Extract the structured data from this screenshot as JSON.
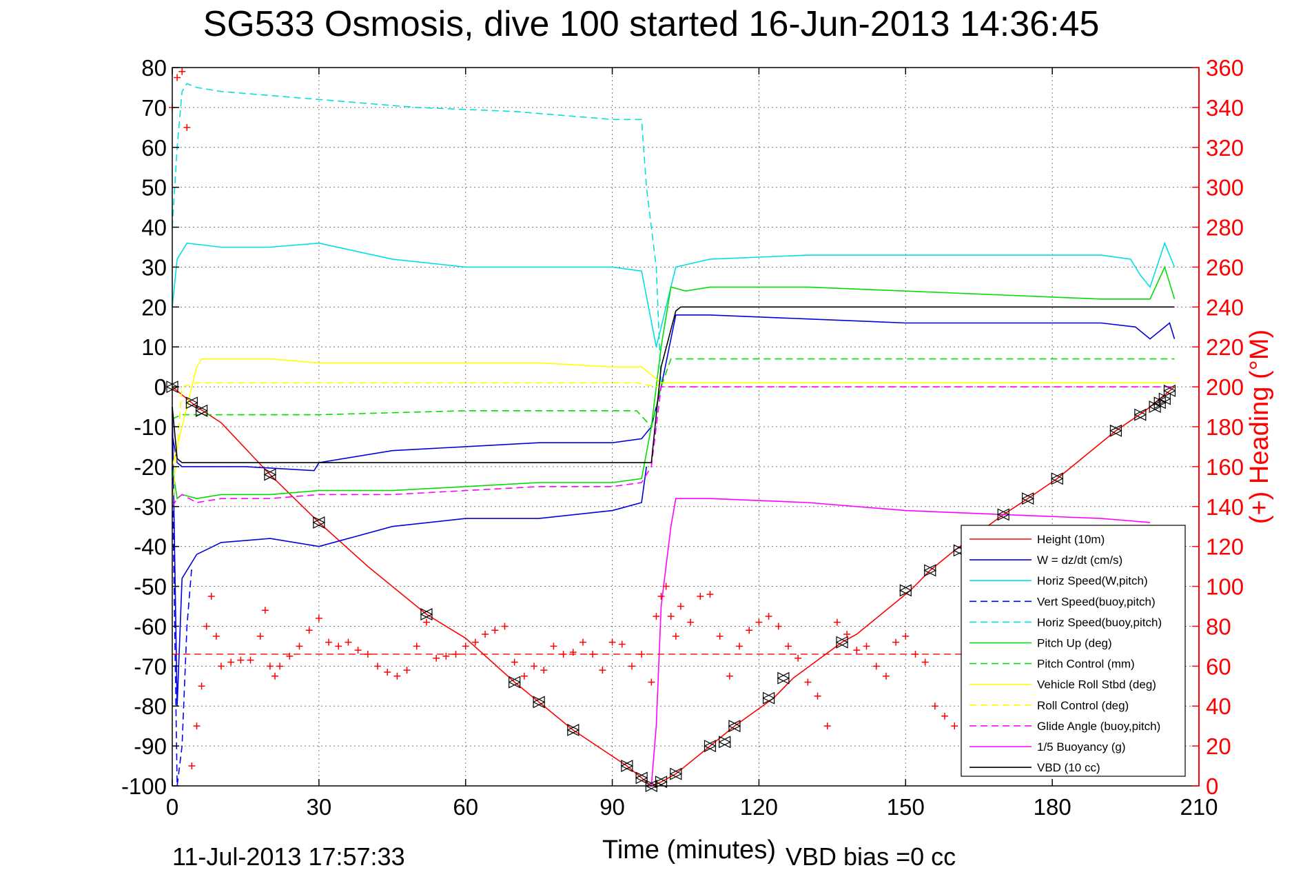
{
  "chart_data": {
    "type": "line",
    "title": "SG533 Osmosis, dive 100 started 16-Jun-2013 14:36:45",
    "xlabel": "Time (minutes)",
    "ylabel": "",
    "y2label": "(+) Heading (°M)",
    "xlim": [
      0,
      210
    ],
    "ylim": [
      -100,
      80
    ],
    "y2lim": [
      0,
      360
    ],
    "xticks": [
      "0",
      "30",
      "60",
      "90",
      "120",
      "150",
      "180",
      "210"
    ],
    "yticks": [
      "80",
      "70",
      "60",
      "50",
      "40",
      "30",
      "20",
      "10",
      "0",
      "-10",
      "-20",
      "-30",
      "-40",
      "-50",
      "-60",
      "-70",
      "-80",
      "-90",
      "-100"
    ],
    "y2ticks": [
      "360",
      "340",
      "320",
      "300",
      "280",
      "260",
      "240",
      "220",
      "200",
      "180",
      "160",
      "140",
      "120",
      "100",
      "80",
      "60",
      "40",
      "20",
      "0"
    ],
    "grid": true,
    "legend_position": "bottom-right",
    "footer_left": "11-Jul-2013 17:57:33",
    "footer_right": "VBD bias =0 cc",
    "series": [
      {
        "name": "Height (10m)",
        "color": "#ff0000",
        "style": "solid",
        "x": [
          0,
          5,
          10,
          20,
          30,
          40,
          52,
          60,
          70,
          75,
          82,
          93,
          96,
          98,
          100,
          103,
          110,
          115,
          123,
          127,
          137,
          140,
          151,
          155,
          160,
          170,
          175,
          181,
          193,
          199,
          203,
          205
        ],
        "y": [
          0,
          -5,
          -9,
          -22,
          -34,
          -45,
          -57,
          -63,
          -74,
          -79,
          -86,
          -95,
          -98,
          -100,
          -99,
          -97,
          -90,
          -85,
          -78,
          -73,
          -64,
          -62,
          -51,
          -46,
          -41,
          -32,
          -28,
          -23,
          -11,
          -6,
          -2,
          0
        ]
      },
      {
        "name": "W = dz/dt (cm/s)",
        "color": "#0000dd",
        "style": "solid",
        "x": [
          0,
          1,
          2,
          5,
          15,
          29,
          30,
          45,
          60,
          75,
          90,
          96,
          98,
          100,
          103,
          110,
          130,
          150,
          170,
          190,
          197,
          200,
          204,
          205
        ],
        "y": [
          -12,
          -19,
          -20,
          -20,
          -20,
          -21,
          -19,
          -16,
          -15,
          -14,
          -14,
          -13,
          -10,
          0,
          18,
          18,
          17,
          16,
          16,
          16,
          15,
          12,
          16,
          12
        ]
      },
      {
        "name": "W = dz/dt (cm/s)",
        "color": "#0000dd",
        "style": "solid",
        "x": [
          0,
          1,
          2,
          5,
          10,
          20,
          30,
          45,
          60,
          75,
          90,
          96,
          97
        ],
        "y": [
          -5,
          -80,
          -48,
          -42,
          -39,
          -38,
          -40,
          -35,
          -33,
          -33,
          -31,
          -29,
          -20
        ]
      },
      {
        "name": "Horiz Speed(W,pitch)",
        "color": "#00e0e0",
        "style": "solid",
        "x": [
          0,
          1,
          3,
          10,
          20,
          30,
          45,
          60,
          75,
          90,
          96,
          99,
          100,
          103,
          110,
          130,
          150,
          170,
          190,
          196,
          198,
          200,
          203,
          205
        ],
        "y": [
          20,
          32,
          36,
          35,
          35,
          36,
          32,
          30,
          30,
          30,
          29,
          10,
          15,
          30,
          32,
          33,
          33,
          33,
          33,
          32,
          28,
          25,
          36,
          30
        ]
      },
      {
        "name": "Vert Speed(buoy,pitch)",
        "color": "#0000ff",
        "style": "dashed",
        "x": [
          0,
          1,
          2,
          3,
          4
        ],
        "y": [
          -20,
          -100,
          -90,
          -60,
          -45
        ]
      },
      {
        "name": "Horiz Speed(buoy,pitch)",
        "color": "#00e0e0",
        "style": "dashed",
        "x": [
          0,
          1,
          2,
          3,
          5,
          10,
          20,
          30,
          50,
          70,
          90,
          94,
          96,
          97,
          98,
          99,
          100
        ],
        "y": [
          40,
          60,
          74,
          76,
          75,
          74,
          73,
          72,
          70,
          69,
          67,
          67,
          67,
          50,
          40,
          30,
          0
        ]
      },
      {
        "name": "Pitch Up (deg)",
        "color": "#00dd00",
        "style": "solid",
        "x": [
          0,
          1,
          2,
          5,
          10,
          20,
          30,
          45,
          60,
          75,
          90,
          96,
          98,
          100,
          102,
          105,
          110,
          130,
          150,
          170,
          190,
          200,
          203,
          205
        ],
        "y": [
          -20,
          -28,
          -27,
          -28,
          -27,
          -27,
          -26,
          -26,
          -25,
          -24,
          -24,
          -23,
          -10,
          10,
          25,
          24,
          25,
          25,
          24,
          23,
          22,
          22,
          30,
          22
        ]
      },
      {
        "name": "Pitch Control (mm)",
        "color": "#00dd00",
        "style": "dashed",
        "x": [
          0,
          2,
          10,
          30,
          60,
          95,
          98,
          100,
          102,
          110,
          150,
          190,
          205
        ],
        "y": [
          -8,
          -7,
          -7,
          -7,
          -6,
          -6,
          -10,
          0,
          7,
          7,
          7,
          7,
          7
        ]
      },
      {
        "name": "Vehicle Roll Stbd (deg)",
        "color": "#ffff00",
        "style": "solid",
        "x": [
          0,
          5,
          6,
          10,
          20,
          30,
          40,
          60,
          75,
          90,
          96,
          99,
          100,
          105,
          120,
          150,
          180,
          200,
          205
        ],
        "y": [
          -20,
          5,
          7,
          7,
          7,
          6,
          6,
          6,
          6,
          5,
          5,
          2,
          1,
          1,
          1,
          1,
          1,
          1,
          1
        ]
      },
      {
        "name": "Roll Control (deg)",
        "color": "#ffff00",
        "style": "dashed",
        "x": [
          0,
          2,
          5,
          30,
          60,
          95,
          99,
          100,
          205
        ],
        "y": [
          -30,
          0,
          1,
          1,
          1,
          1,
          0,
          1,
          1
        ]
      },
      {
        "name": "Glide Angle (buoy,pitch)",
        "color": "#ff00ff",
        "style": "dashed",
        "x": [
          0,
          1,
          2,
          5,
          10,
          20,
          30,
          45,
          60,
          75,
          90,
          96,
          98,
          100,
          205
        ],
        "y": [
          -30,
          -28,
          -27,
          -29,
          -28,
          -28,
          -27,
          -27,
          -26,
          -25,
          -25,
          -24,
          -20,
          0,
          0
        ]
      },
      {
        "name": "1/5 Buoyancy (g)",
        "color": "#ff00ff",
        "style": "solid",
        "x": [
          97,
          98,
          99,
          100,
          102,
          103,
          110,
          130,
          150,
          170,
          190,
          200
        ],
        "y": [
          -100,
          -100,
          -85,
          -55,
          -35,
          -28,
          -28,
          -29,
          -31,
          -32,
          -33,
          -34
        ]
      },
      {
        "name": "VBD (10 cc)",
        "color": "#000000",
        "style": "solid",
        "x": [
          0,
          1,
          2,
          5,
          15,
          30,
          60,
          90,
          96,
          98,
          100,
          103,
          104,
          150,
          205
        ],
        "y": [
          -5,
          -18,
          -19,
          -19,
          -19,
          -19,
          -19,
          -19,
          -19,
          -19,
          5,
          19,
          20,
          20,
          20
        ]
      }
    ],
    "heading": {
      "name": "(+) Heading",
      "color": "#ff0000",
      "mean": 66,
      "x": [
        0,
        1,
        2,
        3,
        4,
        5,
        6,
        7,
        8,
        9,
        10,
        12,
        14,
        16,
        18,
        19,
        20,
        21,
        22,
        24,
        26,
        28,
        30,
        32,
        34,
        36,
        38,
        40,
        42,
        44,
        46,
        48,
        50,
        52,
        54,
        56,
        58,
        60,
        62,
        64,
        66,
        68,
        70,
        72,
        74,
        76,
        78,
        80,
        82,
        84,
        86,
        88,
        90,
        92,
        94,
        96,
        98,
        99,
        100,
        101,
        102,
        103,
        104,
        106,
        108,
        110,
        112,
        114,
        116,
        118,
        120,
        122,
        124,
        126,
        128,
        130,
        132,
        134,
        136,
        138,
        140,
        142,
        144,
        146,
        148,
        150,
        152,
        154,
        156,
        158,
        160
      ],
      "y": [
        340,
        355,
        358,
        330,
        10,
        30,
        50,
        80,
        95,
        75,
        60,
        62,
        63,
        63,
        75,
        88,
        60,
        55,
        60,
        65,
        70,
        78,
        84,
        72,
        70,
        72,
        68,
        66,
        60,
        57,
        55,
        58,
        70,
        82,
        64,
        65,
        66,
        70,
        72,
        76,
        78,
        80,
        62,
        55,
        60,
        58,
        70,
        66,
        67,
        72,
        66,
        58,
        72,
        71,
        60,
        66,
        52,
        85,
        95,
        100,
        85,
        75,
        90,
        82,
        95,
        96,
        75,
        55,
        70,
        78,
        82,
        85,
        80,
        70,
        64,
        52,
        45,
        30,
        82,
        76,
        68,
        70,
        60,
        55,
        72,
        75,
        66,
        62,
        40,
        35,
        30
      ]
    },
    "markers": {
      "name": "Height markers",
      "x": [
        0,
        4,
        6,
        20,
        30,
        52,
        70,
        75,
        82,
        93,
        96,
        98,
        100,
        103,
        110,
        113,
        115,
        122,
        125,
        137,
        150,
        155,
        161,
        170,
        175,
        181,
        193,
        198,
        201,
        202,
        203,
        204
      ],
      "y": [
        0,
        -4,
        -6,
        -22,
        -34,
        -57,
        -74,
        -79,
        -86,
        -95,
        -98,
        -100,
        -99,
        -97,
        -90,
        -89,
        -85,
        -78,
        -73,
        -64,
        -51,
        -46,
        -41,
        -32,
        -28,
        -23,
        -11,
        -7,
        -5,
        -4,
        -3,
        -1
      ]
    }
  }
}
